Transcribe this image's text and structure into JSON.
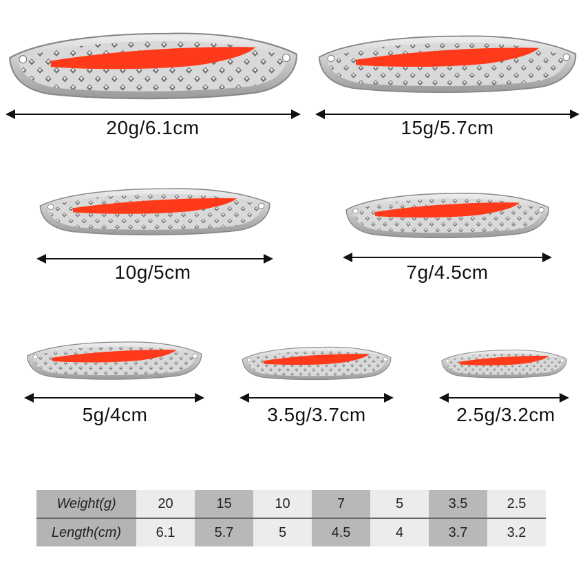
{
  "lures": [
    {
      "label": "20g/6.1cm"
    },
    {
      "label": "15g/5.7cm"
    },
    {
      "label": "10g/5cm"
    },
    {
      "label": "7g/4.5cm"
    },
    {
      "label": "5g/4cm"
    },
    {
      "label": "3.5g/3.7cm"
    },
    {
      "label": "2.5g/3.2cm"
    }
  ],
  "colors": {
    "stripe": "#ff3a1a",
    "metal": "#c8c8c8"
  },
  "table": {
    "rows": [
      {
        "header": "Weight(g)",
        "values": [
          "20",
          "15",
          "10",
          "7",
          "5",
          "3.5",
          "2.5"
        ]
      },
      {
        "header": "Length(cm)",
        "values": [
          "6.1",
          "5.7",
          "5",
          "4.5",
          "4",
          "3.7",
          "3.2"
        ]
      }
    ]
  }
}
